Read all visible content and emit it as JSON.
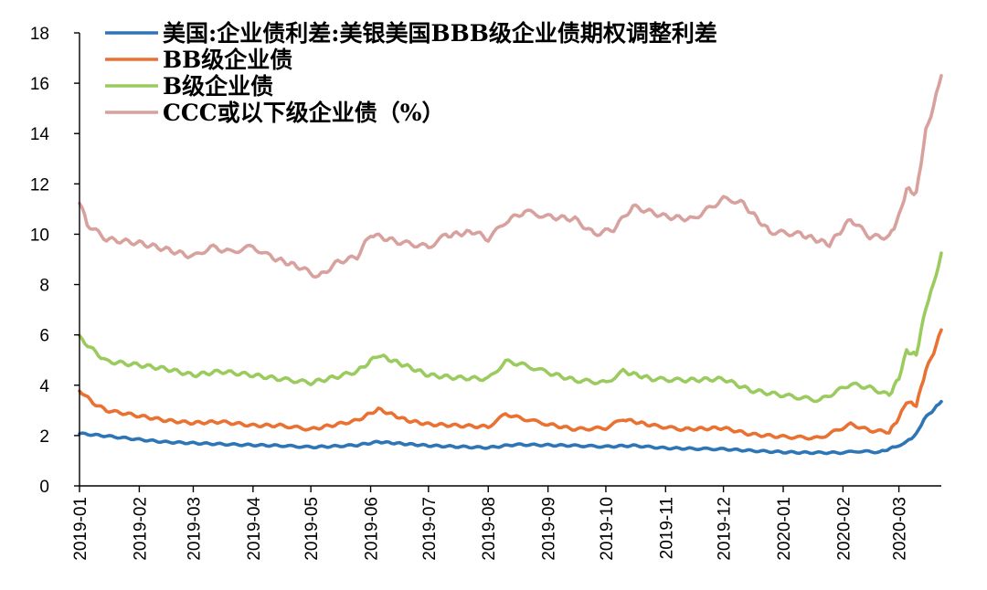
{
  "chart_data": {
    "type": "line",
    "title": "",
    "xlabel": "",
    "ylabel": "",
    "ylim": [
      0,
      18
    ],
    "y_ticks": [
      0,
      2,
      4,
      6,
      8,
      10,
      12,
      14,
      16,
      18
    ],
    "y_tick_labels": [
      "0",
      "2",
      "4",
      "6",
      "8",
      "10",
      "12",
      "14",
      "16",
      "18"
    ],
    "x_range": [
      "2019-01-01",
      "2020-03-23"
    ],
    "x_tick_labels": [
      "2019-01",
      "2019-02",
      "2019-03",
      "2019-04",
      "2019-05",
      "2019-06",
      "2019-07",
      "2019-08",
      "2019-09",
      "2019-10",
      "2019-11",
      "2019-12",
      "2020-01",
      "2020-02",
      "2020-03"
    ],
    "grid": false,
    "legend_position": "top-left",
    "series": [
      {
        "name": "美国:企业债利差:美银美国BBB级企业债期权调整利差",
        "color": "#2E75B6",
        "points": [
          [
            "2019-01-01",
            2.08
          ],
          [
            "2019-01-15",
            1.98
          ],
          [
            "2019-02-01",
            1.84
          ],
          [
            "2019-02-15",
            1.74
          ],
          [
            "2019-03-01",
            1.7
          ],
          [
            "2019-03-15",
            1.66
          ],
          [
            "2019-04-01",
            1.62
          ],
          [
            "2019-04-15",
            1.6
          ],
          [
            "2019-05-01",
            1.54
          ],
          [
            "2019-05-15",
            1.58
          ],
          [
            "2019-05-25",
            1.62
          ],
          [
            "2019-06-05",
            1.75
          ],
          [
            "2019-06-20",
            1.66
          ],
          [
            "2019-07-01",
            1.6
          ],
          [
            "2019-07-15",
            1.56
          ],
          [
            "2019-08-01",
            1.52
          ],
          [
            "2019-08-15",
            1.64
          ],
          [
            "2019-09-01",
            1.62
          ],
          [
            "2019-09-15",
            1.6
          ],
          [
            "2019-10-01",
            1.56
          ],
          [
            "2019-10-15",
            1.6
          ],
          [
            "2019-11-01",
            1.5
          ],
          [
            "2019-11-15",
            1.48
          ],
          [
            "2019-12-01",
            1.46
          ],
          [
            "2019-12-15",
            1.4
          ],
          [
            "2020-01-01",
            1.34
          ],
          [
            "2020-01-15",
            1.32
          ],
          [
            "2020-02-01",
            1.32
          ],
          [
            "2020-02-10",
            1.38
          ],
          [
            "2020-02-20",
            1.34
          ],
          [
            "2020-02-28",
            1.55
          ],
          [
            "2020-03-05",
            1.75
          ],
          [
            "2020-03-10",
            2.05
          ],
          [
            "2020-03-14",
            2.65
          ],
          [
            "2020-03-18",
            2.95
          ],
          [
            "2020-03-23",
            3.35
          ]
        ]
      },
      {
        "name": "BB级企业债",
        "color": "#E97132",
        "points": [
          [
            "2019-01-01",
            3.8
          ],
          [
            "2019-01-08",
            3.3
          ],
          [
            "2019-01-15",
            3.0
          ],
          [
            "2019-02-01",
            2.78
          ],
          [
            "2019-02-15",
            2.6
          ],
          [
            "2019-03-01",
            2.5
          ],
          [
            "2019-03-15",
            2.55
          ],
          [
            "2019-04-01",
            2.4
          ],
          [
            "2019-04-15",
            2.4
          ],
          [
            "2019-05-01",
            2.25
          ],
          [
            "2019-05-15",
            2.45
          ],
          [
            "2019-05-25",
            2.6
          ],
          [
            "2019-06-05",
            3.05
          ],
          [
            "2019-06-20",
            2.6
          ],
          [
            "2019-07-01",
            2.45
          ],
          [
            "2019-07-15",
            2.4
          ],
          [
            "2019-08-01",
            2.35
          ],
          [
            "2019-08-10",
            2.85
          ],
          [
            "2019-08-20",
            2.65
          ],
          [
            "2019-09-01",
            2.45
          ],
          [
            "2019-09-15",
            2.25
          ],
          [
            "2019-10-01",
            2.3
          ],
          [
            "2019-10-10",
            2.65
          ],
          [
            "2019-10-25",
            2.4
          ],
          [
            "2019-11-10",
            2.25
          ],
          [
            "2019-12-01",
            2.3
          ],
          [
            "2019-12-15",
            2.05
          ],
          [
            "2020-01-01",
            1.95
          ],
          [
            "2020-01-20",
            1.9
          ],
          [
            "2020-02-05",
            2.45
          ],
          [
            "2020-02-15",
            2.2
          ],
          [
            "2020-02-25",
            2.15
          ],
          [
            "2020-03-01",
            2.7
          ],
          [
            "2020-03-05",
            3.35
          ],
          [
            "2020-03-10",
            3.2
          ],
          [
            "2020-03-15",
            4.6
          ],
          [
            "2020-03-19",
            5.3
          ],
          [
            "2020-03-23",
            6.2
          ]
        ]
      },
      {
        "name": "B级企业债",
        "color": "#9BCB5F",
        "points": [
          [
            "2019-01-01",
            5.9
          ],
          [
            "2019-01-08",
            5.4
          ],
          [
            "2019-01-15",
            4.95
          ],
          [
            "2019-02-01",
            4.8
          ],
          [
            "2019-02-15",
            4.65
          ],
          [
            "2019-03-01",
            4.4
          ],
          [
            "2019-03-15",
            4.55
          ],
          [
            "2019-04-01",
            4.4
          ],
          [
            "2019-04-15",
            4.25
          ],
          [
            "2019-05-01",
            4.1
          ],
          [
            "2019-05-15",
            4.35
          ],
          [
            "2019-05-25",
            4.55
          ],
          [
            "2019-06-05",
            5.2
          ],
          [
            "2019-06-20",
            4.75
          ],
          [
            "2019-07-01",
            4.4
          ],
          [
            "2019-07-15",
            4.3
          ],
          [
            "2019-08-01",
            4.25
          ],
          [
            "2019-08-10",
            4.95
          ],
          [
            "2019-08-20",
            4.8
          ],
          [
            "2019-09-01",
            4.5
          ],
          [
            "2019-09-15",
            4.2
          ],
          [
            "2019-10-01",
            4.1
          ],
          [
            "2019-10-10",
            4.55
          ],
          [
            "2019-10-25",
            4.25
          ],
          [
            "2019-11-10",
            4.2
          ],
          [
            "2019-12-01",
            4.25
          ],
          [
            "2019-12-15",
            3.8
          ],
          [
            "2020-01-01",
            3.6
          ],
          [
            "2020-01-20",
            3.4
          ],
          [
            "2020-02-05",
            4.05
          ],
          [
            "2020-02-15",
            3.9
          ],
          [
            "2020-02-25",
            3.6
          ],
          [
            "2020-03-01",
            4.3
          ],
          [
            "2020-03-05",
            5.35
          ],
          [
            "2020-03-10",
            5.2
          ],
          [
            "2020-03-15",
            7.1
          ],
          [
            "2020-03-19",
            8.0
          ],
          [
            "2020-03-23",
            9.25
          ]
        ]
      },
      {
        "name": "CCC或以下级企业债（%）",
        "color": "#D9A19E",
        "points": [
          [
            "2019-01-01",
            11.3
          ],
          [
            "2019-01-05",
            10.4
          ],
          [
            "2019-01-15",
            9.8
          ],
          [
            "2019-02-01",
            9.65
          ],
          [
            "2019-02-15",
            9.4
          ],
          [
            "2019-03-01",
            9.1
          ],
          [
            "2019-03-10",
            9.5
          ],
          [
            "2019-03-20",
            9.3
          ],
          [
            "2019-04-01",
            9.5
          ],
          [
            "2019-04-10",
            9.1
          ],
          [
            "2019-04-25",
            8.7
          ],
          [
            "2019-05-05",
            8.3
          ],
          [
            "2019-05-15",
            8.9
          ],
          [
            "2019-05-25",
            9.1
          ],
          [
            "2019-06-01",
            10.0
          ],
          [
            "2019-06-15",
            9.7
          ],
          [
            "2019-07-01",
            9.5
          ],
          [
            "2019-07-10",
            9.95
          ],
          [
            "2019-07-25",
            10.1
          ],
          [
            "2019-08-01",
            9.8
          ],
          [
            "2019-08-10",
            10.5
          ],
          [
            "2019-08-20",
            10.9
          ],
          [
            "2019-09-01",
            10.7
          ],
          [
            "2019-09-15",
            10.6
          ],
          [
            "2019-09-25",
            10.0
          ],
          [
            "2019-10-05",
            10.2
          ],
          [
            "2019-10-15",
            11.1
          ],
          [
            "2019-11-01",
            10.7
          ],
          [
            "2019-11-15",
            10.6
          ],
          [
            "2019-12-01",
            11.4
          ],
          [
            "2019-12-10",
            11.3
          ],
          [
            "2019-12-25",
            10.1
          ],
          [
            "2020-01-10",
            10.0
          ],
          [
            "2020-01-25",
            9.6
          ],
          [
            "2020-02-05",
            10.6
          ],
          [
            "2020-02-15",
            9.9
          ],
          [
            "2020-02-25",
            9.9
          ],
          [
            "2020-03-01",
            10.7
          ],
          [
            "2020-03-05",
            11.8
          ],
          [
            "2020-03-10",
            11.6
          ],
          [
            "2020-03-15",
            14.1
          ],
          [
            "2020-03-19",
            15.1
          ],
          [
            "2020-03-23",
            16.3
          ]
        ]
      }
    ]
  }
}
